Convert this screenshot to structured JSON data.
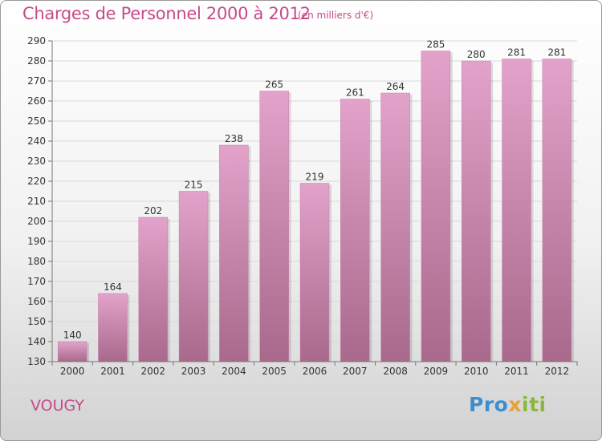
{
  "header": {
    "title": "Charges de Personnel 2000 à 2012",
    "subtitle": "(en milliers d'€)"
  },
  "footer": {
    "town": "VOUGY",
    "logo_text": "Proxiti"
  },
  "colors": {
    "bar_top": "#e2a2ca",
    "bar_bottom": "#a9698c",
    "text_accent": "#c64a8a",
    "grid": "#d9d9d9"
  },
  "chart_data": {
    "type": "bar",
    "categories": [
      "2000",
      "2001",
      "2002",
      "2003",
      "2004",
      "2005",
      "2006",
      "2007",
      "2008",
      "2009",
      "2010",
      "2011",
      "2012"
    ],
    "values": [
      140,
      164,
      202,
      215,
      238,
      265,
      219,
      261,
      264,
      285,
      280,
      281,
      281
    ],
    "ylim": [
      130,
      290
    ],
    "yticks": [
      130,
      140,
      150,
      160,
      170,
      180,
      190,
      200,
      210,
      220,
      230,
      240,
      250,
      260,
      270,
      280,
      290
    ],
    "grid": true,
    "legend": "none"
  }
}
